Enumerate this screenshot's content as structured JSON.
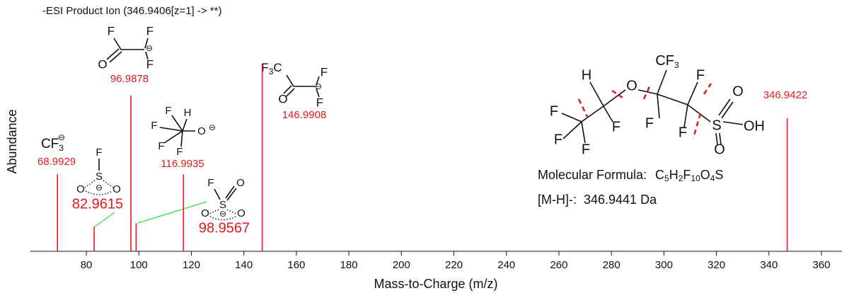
{
  "chart_data": {
    "type": "bar",
    "title": "-ESI Product Ion (346.9406[z=1] -> **)",
    "x_label": "Mass-to-Charge (m/z)",
    "y_label": "Abundance",
    "x": [
      68.9929,
      82.9615,
      96.9878,
      98.9567,
      116.9935,
      146.9908,
      346.9422
    ],
    "values": [
      41,
      13,
      83,
      15,
      41,
      100,
      71
    ],
    "color": "#e31a1c",
    "xlim": [
      58.7,
      367.8
    ],
    "ylim": [
      0,
      100
    ],
    "xticks": [
      80,
      100,
      120,
      140,
      160,
      180,
      200,
      220,
      240,
      260,
      280,
      300,
      320,
      340,
      360
    ],
    "annotations": [
      [
        "F",
        "F",
        "⊖",
        "O",
        "F"
      ],
      [
        "F",
        "3",
        "C",
        "O",
        "F",
        "⊖",
        "F"
      ],
      [
        "CF",
        "3",
        "⊖"
      ],
      [
        "F",
        "S",
        "O",
        "⊖",
        "O"
      ],
      [
        "F",
        "H",
        "F",
        "O",
        "⊖",
        "F",
        "F"
      ],
      [
        "F",
        "S",
        "O",
        "O",
        "⊖",
        "O"
      ],
      [
        "H",
        "O",
        "CF",
        "3",
        "F",
        "O",
        "F",
        "F",
        "F",
        "F",
        "S",
        "OH",
        "F",
        "F",
        "O"
      ]
    ],
    "formula_label": "Molecular Formula:",
    "formula": [
      "C",
      "5",
      "H",
      "2",
      "F",
      "10",
      "O",
      "4",
      "S"
    ],
    "precursor": "[M-H]-:  346.9441 Da"
  }
}
